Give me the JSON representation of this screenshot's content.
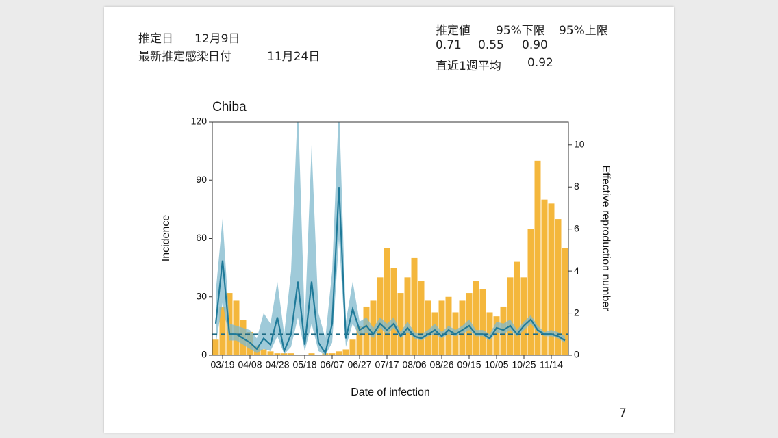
{
  "header": {
    "date_label": "推定日",
    "date": "12月9日",
    "latest_label": "最新推定感染日付",
    "latest": "11月24日",
    "table": {
      "columns": [
        "推定値",
        "95%下限",
        "95%上限"
      ],
      "values": [
        "0.71",
        "0.55",
        "0.90"
      ]
    },
    "weekly_label": "直近1週平均",
    "weekly": "0.92"
  },
  "page_number": "7",
  "chart_data": {
    "type": "bar",
    "title": "Chiba",
    "y_label": "Incidence",
    "y2_label": "Effective reproduction number",
    "x_label": "Date of infection",
    "categories": [
      null,
      "03/19",
      null,
      null,
      null,
      "04/08",
      null,
      null,
      null,
      "04/28",
      null,
      null,
      null,
      "05/18",
      null,
      null,
      null,
      "06/07",
      null,
      null,
      null,
      "06/27",
      null,
      null,
      null,
      "07/17",
      null,
      null,
      null,
      "08/06",
      null,
      null,
      null,
      "08/26",
      null,
      null,
      null,
      "09/15",
      null,
      null,
      null,
      "10/05",
      null,
      null,
      null,
      "10/25",
      null,
      null,
      null,
      "11/14",
      null,
      null
    ],
    "series": [
      {
        "type": "bar",
        "color": "#f4b73c",
        "values": [
          8,
          25,
          32,
          28,
          18,
          12,
          5,
          3,
          2,
          1,
          1,
          1,
          0,
          0,
          1,
          0,
          1,
          1,
          2,
          3,
          8,
          15,
          25,
          28,
          40,
          55,
          45,
          32,
          40,
          50,
          38,
          28,
          22,
          28,
          30,
          22,
          28,
          32,
          38,
          34,
          22,
          20,
          25,
          40,
          48,
          40,
          65,
          100,
          80,
          78,
          70,
          55
        ]
      },
      {
        "type": "line",
        "axis": "y2",
        "color": "#1f7a99",
        "values": [
          1.5,
          4.5,
          1.0,
          1.0,
          0.8,
          0.6,
          0.3,
          0.8,
          0.5,
          1.8,
          0.2,
          1.0,
          3.5,
          0.5,
          3.5,
          0.6,
          0.1,
          1.5,
          8.0,
          0.8,
          2.2,
          1.2,
          1.4,
          1.0,
          1.5,
          1.2,
          1.5,
          0.9,
          1.3,
          0.9,
          0.8,
          1.0,
          1.2,
          0.9,
          1.2,
          1.0,
          1.2,
          1.4,
          1.0,
          1.0,
          0.8,
          1.3,
          1.2,
          1.4,
          1.0,
          1.4,
          1.7,
          1.2,
          1.0,
          1.0,
          0.9,
          0.7
        ]
      }
    ],
    "band": {
      "axis": "y2",
      "color": "#7fb8cc",
      "lower": [
        0.5,
        2.5,
        0.7,
        0.7,
        0.5,
        0.3,
        0.1,
        0.3,
        0.2,
        0.9,
        0.05,
        0.4,
        1.8,
        0.2,
        1.5,
        0.2,
        0,
        0.6,
        5.5,
        0.4,
        1.5,
        0.9,
        1.1,
        0.8,
        1.3,
        1.0,
        1.3,
        0.8,
        1.1,
        0.8,
        0.7,
        0.9,
        1.0,
        0.8,
        1.0,
        0.9,
        1.0,
        1.2,
        0.9,
        0.9,
        0.7,
        1.1,
        1.0,
        1.2,
        0.9,
        1.2,
        1.5,
        1.1,
        0.9,
        0.9,
        0.8,
        0.6
      ],
      "upper": [
        3.0,
        6.5,
        1.5,
        1.4,
        1.3,
        1.2,
        0.8,
        2.0,
        1.5,
        3.5,
        1.0,
        4.0,
        12,
        1.5,
        10,
        2.0,
        0.8,
        4.0,
        12,
        1.6,
        3.5,
        1.6,
        1.8,
        1.3,
        1.8,
        1.5,
        1.8,
        1.1,
        1.6,
        1.1,
        1.0,
        1.2,
        1.5,
        1.1,
        1.4,
        1.2,
        1.4,
        1.7,
        1.2,
        1.2,
        1.0,
        1.6,
        1.5,
        1.7,
        1.2,
        1.6,
        1.9,
        1.4,
        1.1,
        1.2,
        1.1,
        0.9
      ]
    },
    "reference_line": 1,
    "ylim": [
      0,
      120
    ],
    "yticks": [
      0,
      30,
      60,
      90,
      120
    ],
    "y2lim": [
      0,
      11.1
    ],
    "y2ticks": [
      0,
      2,
      4,
      6,
      8,
      10
    ]
  }
}
